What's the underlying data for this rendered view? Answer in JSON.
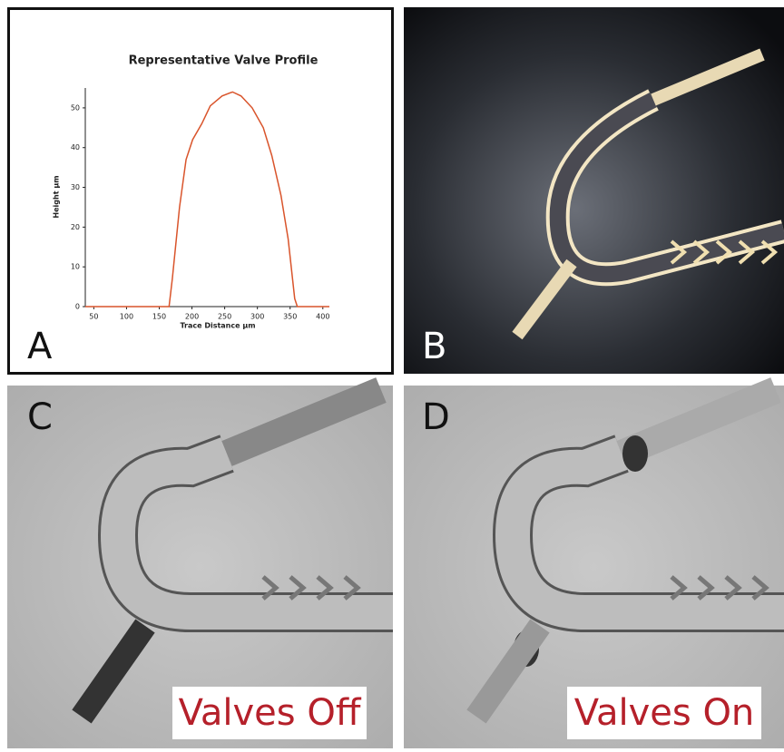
{
  "chart_data": {
    "type": "line",
    "title": "Representative Valve Profile",
    "x_label": "Trace Distance µm",
    "y_label": "Height µm",
    "x": [
      37,
      165,
      170,
      181,
      191,
      201,
      215,
      228,
      246,
      262,
      275,
      292,
      309,
      322,
      336,
      347,
      357,
      361,
      410
    ],
    "values": [
      0,
      0,
      7,
      25,
      37,
      42,
      46,
      50.5,
      53,
      54,
      53,
      50,
      45,
      38,
      28,
      17,
      2,
      0,
      0
    ],
    "color": "#d9542b",
    "xlim": [
      37,
      410
    ],
    "xticks": [
      50,
      100,
      150,
      200,
      250,
      300,
      350,
      400
    ],
    "ylim": [
      0,
      55
    ],
    "yticks": [
      0,
      10,
      20,
      30,
      40,
      50
    ]
  },
  "panels": {
    "labels": [
      "A",
      "B",
      "C",
      "D"
    ],
    "captions": [
      "Valves Off",
      "Valves On"
    ]
  }
}
